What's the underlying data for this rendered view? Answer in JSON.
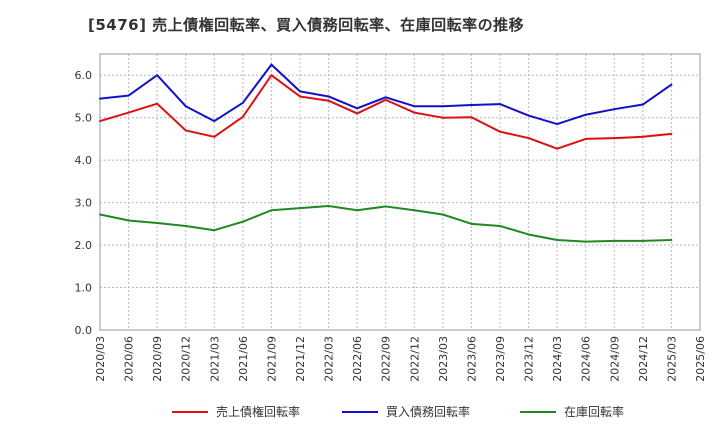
{
  "chart_data": {
    "type": "line",
    "title": "[5476]  売上債権回転率、買入債務回転率、在庫回転率の推移",
    "xlabel": "",
    "ylabel": "",
    "ylim": [
      0,
      6.5
    ],
    "yticks": [
      "0.0",
      "1.0",
      "2.0",
      "3.0",
      "4.0",
      "5.0",
      "6.0"
    ],
    "ytick_values": [
      0,
      1,
      2,
      3,
      4,
      5,
      6
    ],
    "grid": true,
    "legend_position": "bottom",
    "categories": [
      "2020/03",
      "2020/06",
      "2020/09",
      "2020/12",
      "2021/03",
      "2021/06",
      "2021/09",
      "2021/12",
      "2022/03",
      "2022/06",
      "2022/09",
      "2022/12",
      "2023/03",
      "2023/06",
      "2023/09",
      "2023/12",
      "2024/03",
      "2024/06",
      "2024/09",
      "2024/12",
      "2025/03",
      "2025/06"
    ],
    "series": [
      {
        "name": "売上債権回転率",
        "color": "#dd1111",
        "values": [
          4.92,
          5.12,
          5.33,
          4.7,
          4.55,
          5.02,
          6.0,
          5.5,
          5.4,
          5.1,
          5.42,
          5.12,
          5.0,
          5.01,
          4.67,
          4.52,
          4.27,
          4.5,
          4.52,
          4.55,
          4.62,
          null
        ]
      },
      {
        "name": "買入債務回転率",
        "color": "#1111cc",
        "values": [
          5.45,
          5.52,
          6.0,
          5.27,
          4.92,
          5.35,
          6.25,
          5.62,
          5.5,
          5.22,
          5.48,
          5.27,
          5.27,
          5.3,
          5.32,
          5.05,
          4.85,
          5.07,
          5.2,
          5.31,
          5.78,
          null
        ]
      },
      {
        "name": "在庫回転率",
        "color": "#228822",
        "values": [
          2.72,
          2.58,
          2.52,
          2.45,
          2.35,
          2.55,
          2.82,
          2.87,
          2.92,
          2.82,
          2.91,
          2.82,
          2.72,
          2.5,
          2.45,
          2.25,
          2.12,
          2.08,
          2.1,
          2.1,
          2.12,
          null
        ]
      }
    ]
  }
}
